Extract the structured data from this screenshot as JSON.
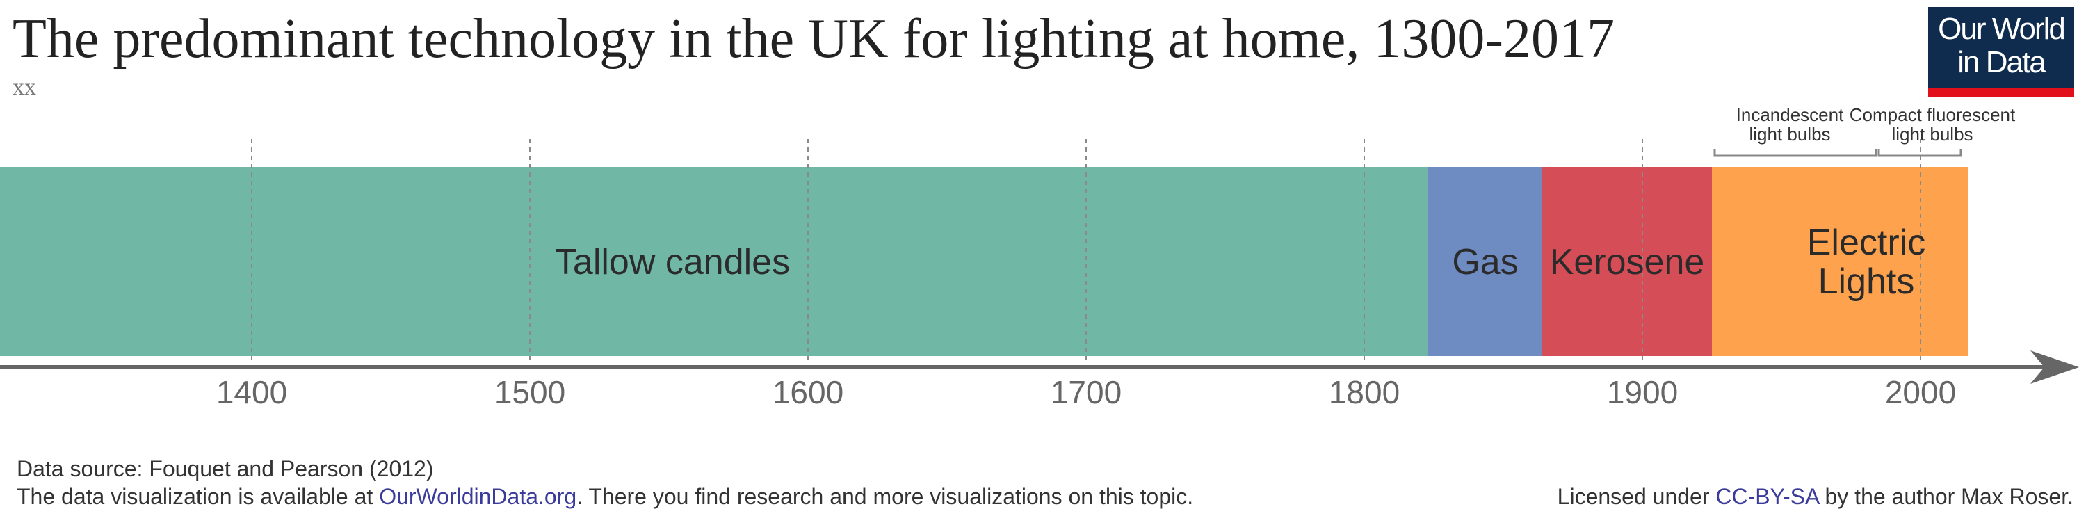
{
  "header": {
    "title": "The predominant technology in the UK for lighting at home, 1300-2017",
    "subtitle": "xx"
  },
  "logo": {
    "line1": "Our World",
    "line2": "in Data"
  },
  "chart_data": {
    "type": "bar",
    "orientation": "horizontal-timeline",
    "xlim": [
      1300,
      2060
    ],
    "xticks": [
      1400,
      1500,
      1600,
      1700,
      1800,
      1900,
      2000
    ],
    "grid": "vertical-dashed",
    "segments": [
      {
        "label": "Tallow candles",
        "start": 1300,
        "end": 1823,
        "color": "#70b7a6"
      },
      {
        "label": "Gas",
        "start": 1823,
        "end": 1864,
        "color": "#6e8bc2"
      },
      {
        "label": "Kerosene",
        "start": 1864,
        "end": 1925,
        "color": "#d54d56"
      },
      {
        "label": "Electric Lights",
        "start": 1925,
        "end": 2017,
        "color": "#ffa24d"
      }
    ],
    "sub_periods": [
      {
        "label": "Incandescent light bulbs",
        "start": 1925,
        "end": 1984
      },
      {
        "label": "Compact fluorescent light bulbs",
        "start": 1984,
        "end": 2015
      }
    ]
  },
  "footer": {
    "source": "Data source: Fouquet and Pearson (2012)",
    "avail_pre": "The data visualization is available at ",
    "avail_link": "OurWorldinData.org",
    "avail_post": ". There you find research and more visualizations on this topic.",
    "lic_pre": "Licensed under ",
    "lic_link": "CC-BY-SA",
    "lic_post": " by the author Max Roser."
  }
}
